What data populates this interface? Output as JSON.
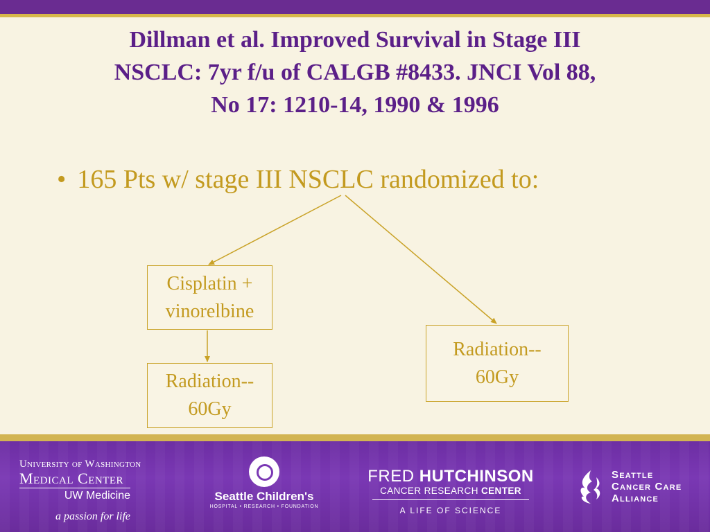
{
  "slide": {
    "title_lines": [
      "Dillman et al.  Improved Survival in Stage III",
      "NSCLC:  7yr f/u of CALGB #8433.  JNCI Vol 88,",
      "No 17: 1210-14, 1990 & 1996"
    ],
    "bullet": {
      "marker": "•",
      "text": "165 Pts w/ stage III NSCLC randomized to:"
    }
  },
  "diagram": {
    "box_chemo": [
      "Cisplatin +",
      "vinorelbine"
    ],
    "box_rad_left": [
      "Radiation--",
      "60Gy"
    ],
    "box_rad_right": [
      "Radiation--",
      "60Gy"
    ]
  },
  "footer": {
    "uw": {
      "line1": "University of Washington",
      "line2": "Medical Center",
      "line3": "UW Medicine",
      "tagline": "a passion for life"
    },
    "seattle_childrens": {
      "name": "Seattle Children's",
      "sub": "HOSPITAL • RESEARCH • FOUNDATION"
    },
    "fred_hutch": {
      "line1_a": "FRED ",
      "line1_b": "HUTCHINSON",
      "line2_a": "CANCER RESEARCH ",
      "line2_b": "CENTER",
      "line3": "A LIFE OF SCIENCE"
    },
    "scca": {
      "line1": "Seattle",
      "line2": "Cancer Care",
      "line3": "Alliance"
    }
  },
  "colors": {
    "purple": "#6a2c91",
    "gold": "#c39a1f",
    "background": "#f8f3e2"
  }
}
